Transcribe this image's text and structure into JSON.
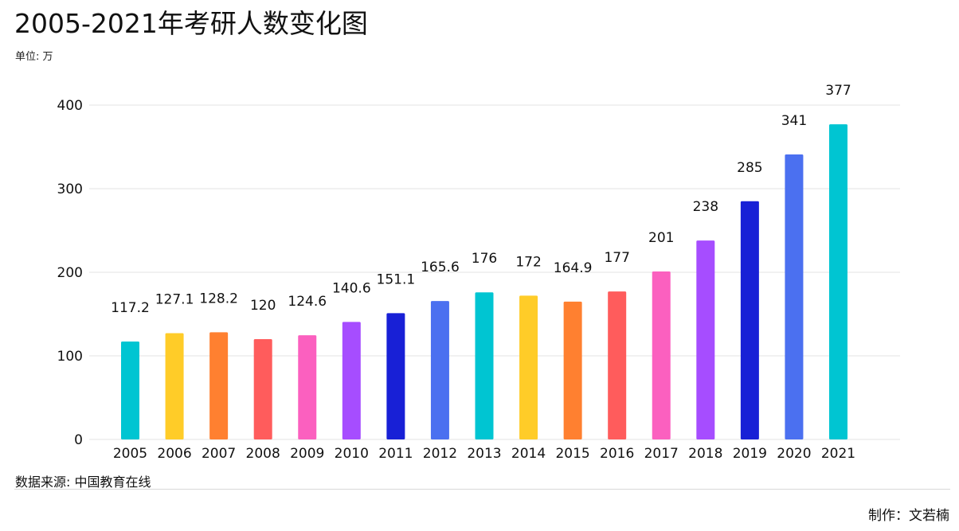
{
  "header": {
    "title": "2005-2021年考研人数变化图",
    "unit": "单位: 万"
  },
  "footer": {
    "source": "数据来源: 中国教育在线",
    "credit": "制作：文若楠"
  },
  "chart_data": {
    "type": "bar",
    "title": "2005-2021年考研人数变化图",
    "ylabel": "",
    "xlabel": "",
    "ylim": [
      0,
      400
    ],
    "yticks": [
      0,
      100,
      200,
      300,
      400
    ],
    "grid": true,
    "categories": [
      "2005",
      "2006",
      "2007",
      "2008",
      "2009",
      "2010",
      "2011",
      "2012",
      "2013",
      "2014",
      "2015",
      "2016",
      "2017",
      "2018",
      "2019",
      "2020",
      "2021"
    ],
    "values": [
      117.2,
      127.1,
      128.2,
      120,
      124.6,
      140.6,
      151.1,
      165.6,
      176,
      172,
      164.9,
      177,
      201,
      238,
      285,
      341,
      377
    ],
    "value_labels": [
      "117.2",
      "127.1",
      "128.2",
      "120",
      "124.6",
      "140.6",
      "151.1",
      "165.6",
      "176",
      "172",
      "164.9",
      "177",
      "201",
      "238",
      "285",
      "341",
      "377"
    ],
    "colors": [
      "#00c5d2",
      "#ffcc28",
      "#ff8030",
      "#ff5c5c",
      "#fb60bf",
      "#a64dff",
      "#1820d6",
      "#4b70f0",
      "#00c5d2",
      "#ffcc28",
      "#ff8030",
      "#ff5c5c",
      "#fb60bf",
      "#a64dff",
      "#1820d6",
      "#4b70f0",
      "#00c5d2"
    ],
    "gridline_color": "#e3e3e3"
  }
}
